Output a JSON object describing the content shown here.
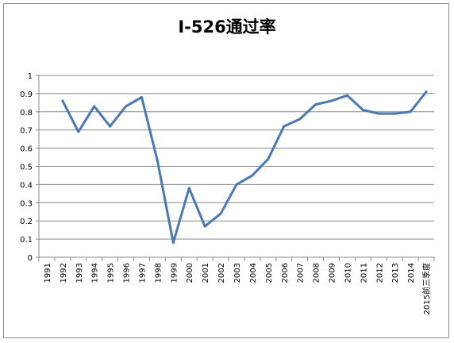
{
  "chart_data": {
    "type": "line",
    "title": "I-526通过率",
    "xlabel": "",
    "ylabel": "",
    "categories": [
      "1991",
      "1992",
      "1993",
      "1994",
      "1995",
      "1996",
      "1997",
      "1998",
      "1999",
      "2000",
      "2001",
      "2002",
      "2003",
      "2004",
      "2005",
      "2006",
      "2007",
      "2008",
      "2009",
      "2010",
      "2011",
      "2012",
      "2013",
      "2014",
      "2015前三季度"
    ],
    "series": [
      {
        "values": [
          null,
          0.86,
          0.69,
          0.83,
          0.72,
          0.83,
          0.88,
          0.53,
          0.08,
          0.38,
          0.17,
          0.24,
          0.4,
          0.45,
          0.54,
          0.72,
          0.76,
          0.84,
          0.86,
          0.89,
          0.81,
          0.79,
          0.79,
          0.8,
          0.91
        ]
      }
    ],
    "ylim": [
      0,
      1
    ],
    "yticks": [
      0,
      0.1,
      0.2,
      0.3,
      0.4,
      0.5,
      0.6,
      0.7,
      0.8,
      0.9,
      1
    ],
    "grid": true,
    "legend": "none",
    "line_color": "#4a78b4"
  }
}
